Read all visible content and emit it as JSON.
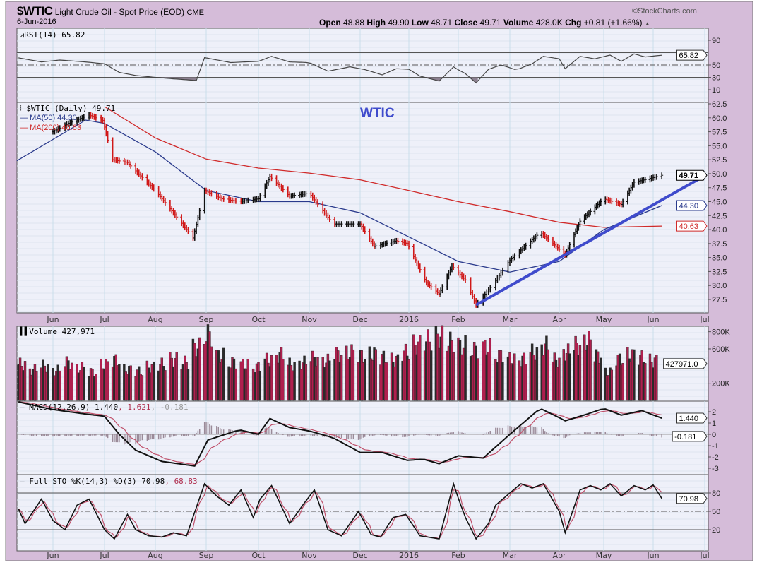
{
  "header": {
    "symbol": "$WTIC",
    "name": "Light Crude Oil - Spot Price (EOD)",
    "exchange": "CME",
    "date": "6-Jun-2016",
    "open_label": "Open",
    "open": "48.88",
    "high_label": "High",
    "high": "49.90",
    "low_label": "Low",
    "low": "48.71",
    "close_label": "Close",
    "close": "49.71",
    "volume_label": "Volume",
    "volume": "428.0K",
    "chg_label": "Chg",
    "chg": "+0.81 (+1.66%)",
    "watermark": "©StockCharts.com"
  },
  "colors": {
    "frame": "#d5bcd9",
    "panel": "#eef0f9",
    "grid": "#c9deea",
    "up": "#111111",
    "down": "#d01818",
    "ma50": "#2a3a8c",
    "ma200": "#d02a2a",
    "volume_up": "#2b2b2b",
    "volume_down": "#b0204f",
    "trendline": "#3f4bcc",
    "signal": "#c0506a",
    "histogram": "#9a8a98"
  },
  "chart_data": [
    {
      "type": "line",
      "panel": "rsi",
      "legend": "RSI(14) 65.82",
      "ylim": [
        0,
        100
      ],
      "levels": [
        70,
        50,
        30
      ],
      "ticks": [
        "90",
        "50",
        "30",
        "10"
      ],
      "last_tag": "65.82",
      "points": [
        [
          "2015-05-10",
          62
        ],
        [
          "2015-05-25",
          55
        ],
        [
          "2015-06-05",
          58
        ],
        [
          "2015-06-20",
          55
        ],
        [
          "2015-07-01",
          52
        ],
        [
          "2015-07-10",
          38
        ],
        [
          "2015-07-20",
          33
        ],
        [
          "2015-08-01",
          30
        ],
        [
          "2015-08-15",
          27
        ],
        [
          "2015-08-26",
          25
        ],
        [
          "2015-08-31",
          62
        ],
        [
          "2015-09-15",
          54
        ],
        [
          "2015-10-01",
          56
        ],
        [
          "2015-10-09",
          64
        ],
        [
          "2015-10-20",
          55
        ],
        [
          "2015-11-01",
          54
        ],
        [
          "2015-11-12",
          40
        ],
        [
          "2015-11-25",
          47
        ],
        [
          "2015-12-05",
          42
        ],
        [
          "2015-12-15",
          34
        ],
        [
          "2015-12-24",
          44
        ],
        [
          "2016-01-01",
          43
        ],
        [
          "2016-01-08",
          32
        ],
        [
          "2016-01-20",
          24
        ],
        [
          "2016-01-29",
          47
        ],
        [
          "2016-02-05",
          36
        ],
        [
          "2016-02-11",
          21
        ],
        [
          "2016-02-18",
          43
        ],
        [
          "2016-02-25",
          50
        ],
        [
          "2016-03-05",
          42
        ],
        [
          "2016-03-15",
          52
        ],
        [
          "2016-03-22",
          64
        ],
        [
          "2016-04-01",
          60
        ],
        [
          "2016-04-05",
          44
        ],
        [
          "2016-04-15",
          64
        ],
        [
          "2016-04-25",
          60
        ],
        [
          "2016-05-05",
          66
        ],
        [
          "2016-05-12",
          56
        ],
        [
          "2016-05-20",
          68
        ],
        [
          "2016-05-27",
          63
        ],
        [
          "2016-06-06",
          65.82
        ]
      ]
    },
    {
      "type": "ohlc",
      "panel": "price",
      "legend": "$WTIC (Daily) 49.71",
      "annotation": "WTIC",
      "ylim": [
        26,
        63
      ],
      "ticks": [
        "62.5",
        "60.0",
        "57.5",
        "55.0",
        "52.5",
        "50.0",
        "47.5",
        "45.0",
        "42.5",
        "40.0",
        "37.5",
        "35.0",
        "32.5",
        "30.0",
        "27.5"
      ],
      "last_tag": "49.71",
      "close": [
        [
          "2015-06-01",
          57.5
        ],
        [
          "2015-06-10",
          59
        ],
        [
          "2015-06-22",
          60.5
        ],
        [
          "2015-06-30",
          59.5
        ],
        [
          "2015-07-06",
          52.5
        ],
        [
          "2015-07-15",
          52
        ],
        [
          "2015-07-25",
          49
        ],
        [
          "2015-08-01",
          47
        ],
        [
          "2015-08-12",
          43
        ],
        [
          "2015-08-24",
          38.5
        ],
        [
          "2015-08-31",
          47
        ],
        [
          "2015-09-10",
          45.5
        ],
        [
          "2015-09-20",
          45
        ],
        [
          "2015-10-01",
          45.5
        ],
        [
          "2015-10-08",
          49.5
        ],
        [
          "2015-10-20",
          46
        ],
        [
          "2015-11-01",
          46.5
        ],
        [
          "2015-11-15",
          41
        ],
        [
          "2015-12-01",
          41
        ],
        [
          "2015-12-10",
          37
        ],
        [
          "2015-12-24",
          38
        ],
        [
          "2015-12-31",
          37.5
        ],
        [
          "2016-01-12",
          30.5
        ],
        [
          "2016-01-20",
          28.5
        ],
        [
          "2016-01-28",
          33.5
        ],
        [
          "2016-02-05",
          31
        ],
        [
          "2016-02-11",
          26.5
        ],
        [
          "2016-02-20",
          30
        ],
        [
          "2016-03-01",
          34.5
        ],
        [
          "2016-03-20",
          39.5
        ],
        [
          "2016-04-01",
          36.5
        ],
        [
          "2016-04-05",
          35.5
        ],
        [
          "2016-04-15",
          41.5
        ],
        [
          "2016-05-01",
          45.5
        ],
        [
          "2016-05-12",
          44.5
        ],
        [
          "2016-05-20",
          48.5
        ],
        [
          "2016-05-28",
          49
        ],
        [
          "2016-06-06",
          49.71
        ]
      ],
      "series": [
        {
          "name": "MA(50) 44.30",
          "tag": "44.30",
          "points": [
            [
              "2015-05-10",
              52.3
            ],
            [
              "2015-06-20",
              59.6
            ],
            [
              "2015-07-01",
              59
            ],
            [
              "2015-08-01",
              53.9
            ],
            [
              "2015-09-01",
              47
            ],
            [
              "2015-10-01",
              45
            ],
            [
              "2015-11-01",
              45
            ],
            [
              "2015-12-01",
              43
            ],
            [
              "2016-01-01",
              38.7
            ],
            [
              "2016-02-01",
              34.3
            ],
            [
              "2016-03-01",
              32.4
            ],
            [
              "2016-04-01",
              34.3
            ],
            [
              "2016-05-01",
              40
            ],
            [
              "2016-06-06",
              44.3
            ]
          ]
        },
        {
          "name": "MA(200) 40.63",
          "tag": "40.63",
          "points": [
            [
              "2015-07-01",
              62
            ],
            [
              "2015-08-01",
              56.4
            ],
            [
              "2015-09-01",
              52.6
            ],
            [
              "2015-10-01",
              51
            ],
            [
              "2015-11-01",
              50.1
            ],
            [
              "2015-12-01",
              48.9
            ],
            [
              "2016-01-01",
              47
            ],
            [
              "2016-02-01",
              45
            ],
            [
              "2016-03-01",
              43.2
            ],
            [
              "2016-04-01",
              41.3
            ],
            [
              "2016-05-01",
              40.4
            ],
            [
              "2016-06-06",
              40.63
            ]
          ]
        }
      ],
      "trendline": [
        [
          "2016-02-11",
          26.5
        ],
        [
          "2016-06-29",
          49.3
        ]
      ]
    },
    {
      "type": "bar",
      "panel": "volume",
      "legend": "Volume 427,971",
      "ticks": [
        "800K",
        "600K",
        "200K"
      ],
      "last_tag": "427971.0",
      "weekly_k": [
        420,
        360,
        400,
        350,
        440,
        380,
        330,
        420,
        470,
        360,
        340,
        390,
        420,
        480,
        440,
        620,
        760,
        520,
        440,
        420,
        390,
        470,
        530,
        420,
        440,
        490,
        460,
        540,
        560,
        520,
        540,
        500,
        470,
        560,
        650,
        700,
        740,
        680,
        640,
        590,
        620,
        520,
        480,
        480,
        560,
        640,
        470,
        560,
        640,
        690,
        520,
        330,
        480,
        530,
        500,
        460
      ],
      "x_range": [
        "2015-05-11",
        "2016-06-06"
      ]
    },
    {
      "type": "line",
      "panel": "macd",
      "legend": "MACD(12,26,9) 1.440, 1.621, -0.181",
      "macd_label": "MACD(12,26,9) 1.440",
      "signal_label": "1.621",
      "hist_label": "-0.181",
      "ticks": [
        "2",
        "1",
        "0",
        "-1",
        "-2",
        "-3"
      ],
      "last_tags": [
        "1.440",
        "-0.181"
      ],
      "macd": [
        [
          "2015-05-10",
          2.9
        ],
        [
          "2015-06-01",
          2.2
        ],
        [
          "2015-06-20",
          1.8
        ],
        [
          "2015-07-01",
          1.6
        ],
        [
          "2015-07-10",
          0
        ],
        [
          "2015-07-20",
          -1.4
        ],
        [
          "2015-08-05",
          -2.4
        ],
        [
          "2015-08-25",
          -2.8
        ],
        [
          "2015-09-02",
          -0.5
        ],
        [
          "2015-09-20",
          0.4
        ],
        [
          "2015-10-01",
          0
        ],
        [
          "2015-10-08",
          1.4
        ],
        [
          "2015-10-20",
          0.6
        ],
        [
          "2015-11-01",
          0.3
        ],
        [
          "2015-11-15",
          -0.3
        ],
        [
          "2015-12-01",
          -1.6
        ],
        [
          "2015-12-15",
          -1.6
        ],
        [
          "2015-12-31",
          -2.3
        ],
        [
          "2016-01-10",
          -2.2
        ],
        [
          "2016-01-20",
          -2.6
        ],
        [
          "2016-02-01",
          -1.9
        ],
        [
          "2016-02-15",
          -2.1
        ],
        [
          "2016-03-01",
          0
        ],
        [
          "2016-03-20",
          2.3
        ],
        [
          "2016-04-05",
          1.2
        ],
        [
          "2016-04-20",
          1.8
        ],
        [
          "2016-05-01",
          2.3
        ],
        [
          "2016-05-12",
          1.7
        ],
        [
          "2016-05-25",
          2.1
        ],
        [
          "2016-06-06",
          1.44
        ]
      ]
    },
    {
      "type": "line",
      "panel": "sto",
      "legend": "Full STO %K(14,3) %D(3) 70.98, 68.83",
      "k_label": "Full STO %K(14,3) %D(3) 70.98",
      "d_label": "68.83",
      "ticks": [
        "80",
        "50",
        "20"
      ],
      "last_tag": "70.98",
      "levels": [
        80,
        50,
        20
      ],
      "k": [
        [
          "2015-05-10",
          60
        ],
        [
          "2015-05-15",
          30
        ],
        [
          "2015-05-25",
          70
        ],
        [
          "2015-06-01",
          35
        ],
        [
          "2015-06-08",
          20
        ],
        [
          "2015-06-15",
          60
        ],
        [
          "2015-06-22",
          70
        ],
        [
          "2015-07-01",
          20
        ],
        [
          "2015-07-07",
          5
        ],
        [
          "2015-07-15",
          45
        ],
        [
          "2015-07-20",
          20
        ],
        [
          "2015-07-28",
          10
        ],
        [
          "2015-08-05",
          8
        ],
        [
          "2015-08-12",
          15
        ],
        [
          "2015-08-20",
          10
        ],
        [
          "2015-08-31",
          95
        ],
        [
          "2015-09-07",
          75
        ],
        [
          "2015-09-14",
          60
        ],
        [
          "2015-09-21",
          85
        ],
        [
          "2015-09-28",
          40
        ],
        [
          "2015-10-02",
          70
        ],
        [
          "2015-10-09",
          92
        ],
        [
          "2015-10-20",
          30
        ],
        [
          "2015-10-28",
          60
        ],
        [
          "2015-11-04",
          85
        ],
        [
          "2015-11-12",
          20
        ],
        [
          "2015-11-20",
          10
        ],
        [
          "2015-11-30",
          50
        ],
        [
          "2015-12-08",
          12
        ],
        [
          "2015-12-14",
          8
        ],
        [
          "2015-12-22",
          40
        ],
        [
          "2015-12-30",
          45
        ],
        [
          "2016-01-08",
          10
        ],
        [
          "2016-01-20",
          5
        ],
        [
          "2016-01-29",
          95
        ],
        [
          "2016-02-05",
          40
        ],
        [
          "2016-02-11",
          5
        ],
        [
          "2016-02-18",
          30
        ],
        [
          "2016-02-22",
          60
        ],
        [
          "2016-03-01",
          80
        ],
        [
          "2016-03-08",
          95
        ],
        [
          "2016-03-15",
          88
        ],
        [
          "2016-03-22",
          95
        ],
        [
          "2016-04-01",
          50
        ],
        [
          "2016-04-05",
          15
        ],
        [
          "2016-04-15",
          85
        ],
        [
          "2016-04-22",
          92
        ],
        [
          "2016-04-29",
          85
        ],
        [
          "2016-05-05",
          95
        ],
        [
          "2016-05-12",
          75
        ],
        [
          "2016-05-20",
          92
        ],
        [
          "2016-05-27",
          85
        ],
        [
          "2016-06-01",
          93
        ],
        [
          "2016-06-06",
          70.98
        ]
      ]
    }
  ],
  "x_axis": {
    "labels": [
      "Jun",
      "Jul",
      "Aug",
      "Sep",
      "Oct",
      "Nov",
      "Dec",
      "2016",
      "Feb",
      "Mar",
      "Apr",
      "May",
      "Jun",
      "Jul"
    ]
  }
}
